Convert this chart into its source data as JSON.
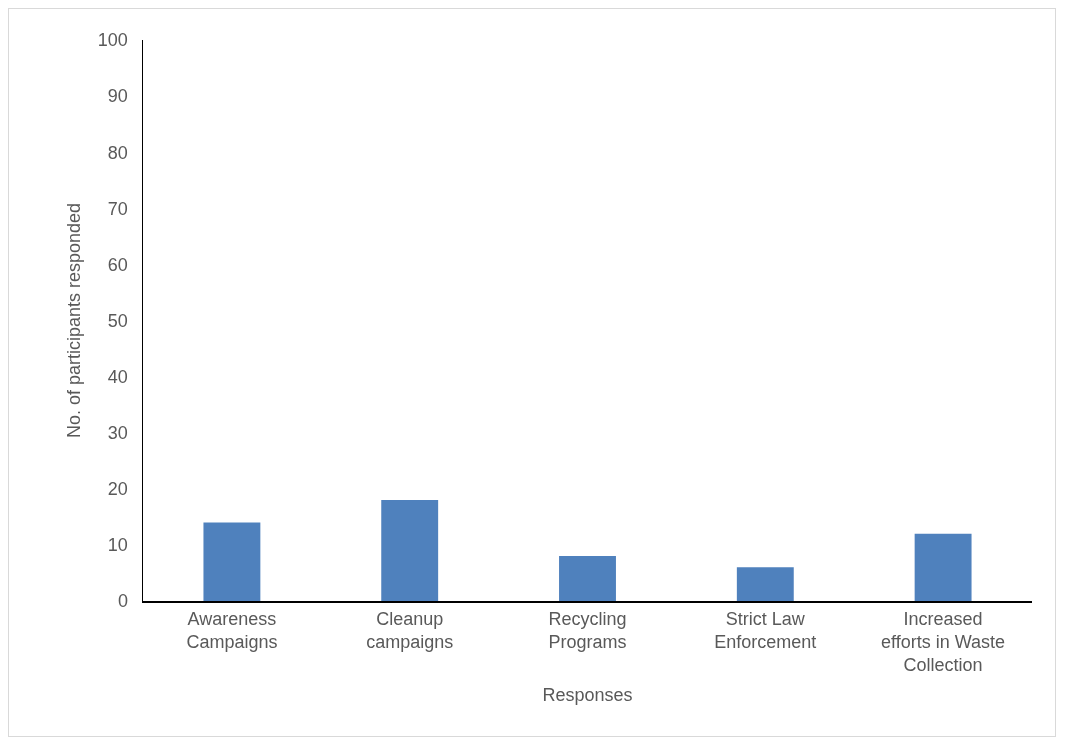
{
  "chart_data": {
    "type": "bar",
    "xlabel": "Responses",
    "ylabel": "No. of participants responded",
    "categories": [
      "Awareness Campaigns",
      "Cleanup campaigns",
      "Recycling Programs",
      "Strict Law Enforcement",
      "Increased efforts in Waste Collection"
    ],
    "values": [
      14,
      18,
      8,
      6,
      12
    ],
    "color": "#4f81bd",
    "ylim": [
      0,
      100
    ],
    "yticks": [
      0,
      10,
      20,
      30,
      40,
      50,
      60,
      70,
      80,
      90,
      100
    ]
  }
}
